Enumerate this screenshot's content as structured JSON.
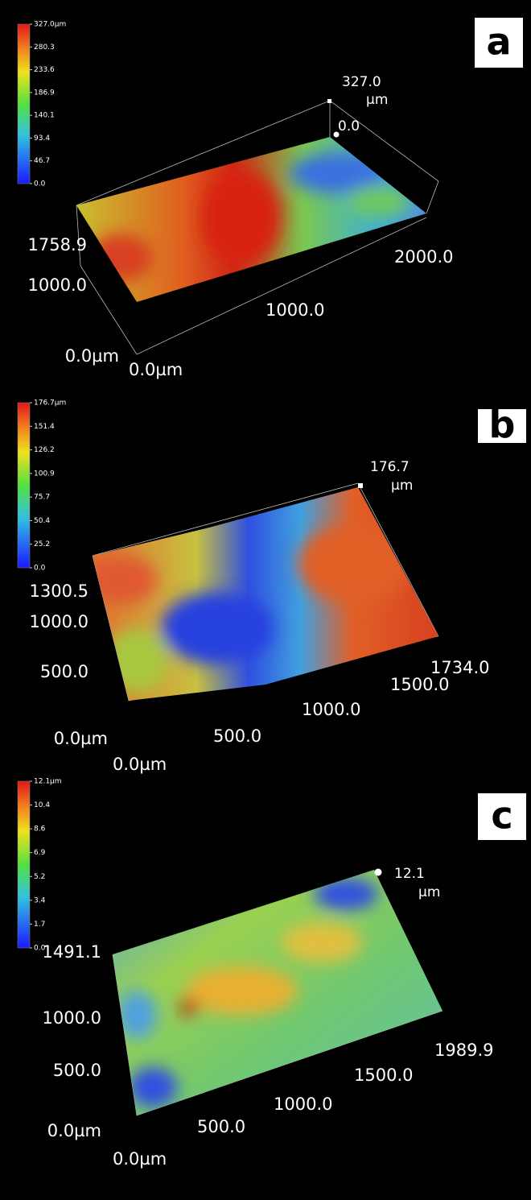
{
  "panels": [
    {
      "label": "a",
      "colorbar": [
        "327.0µm",
        "280.3",
        "233.6",
        "186.9",
        "140.1",
        "93.4",
        "46.7",
        "0.0"
      ],
      "z_max": "327.0",
      "z_unit": "µm",
      "z_min": "0.0",
      "y_labels": [
        "1758.9",
        "1000.0",
        "0.0µm"
      ],
      "x_labels": [
        "0.0µm",
        "1000.0",
        "2000.0"
      ]
    },
    {
      "label": "b",
      "colorbar": [
        "176.7µm",
        "151.4",
        "126.2",
        "100.9",
        "75.7",
        "50.4",
        "25.2",
        "0.0"
      ],
      "z_max": "176.7",
      "z_unit": "µm",
      "y_labels": [
        "1300.5",
        "1000.0",
        "500.0",
        "0.0µm"
      ],
      "x_labels": [
        "0.0µm",
        "500.0",
        "1000.0",
        "1500.0",
        "1734.0"
      ]
    },
    {
      "label": "c",
      "colorbar": [
        "12.1µm",
        "10.4",
        "8.6",
        "6.9",
        "5.2",
        "3.4",
        "1.7",
        "0.0"
      ],
      "z_max": "12.1",
      "z_unit": "µm",
      "y_labels": [
        "1491.1",
        "1000.0",
        "500.0",
        "0.0µm"
      ],
      "x_labels": [
        "0.0µm",
        "500.0",
        "1000.0",
        "1500.0",
        "1989.9"
      ]
    }
  ]
}
